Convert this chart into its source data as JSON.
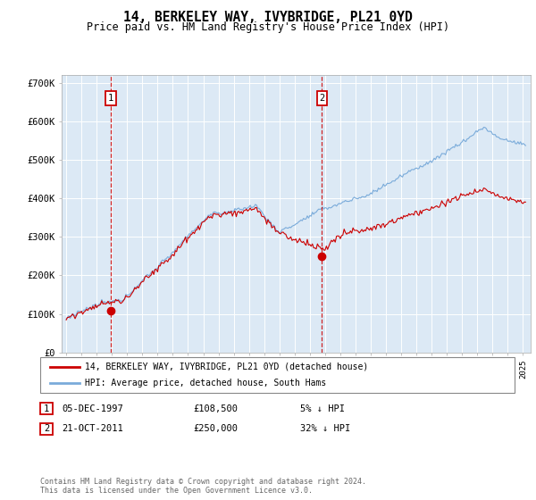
{
  "title": "14, BERKELEY WAY, IVYBRIDGE, PL21 0YD",
  "subtitle": "Price paid vs. HM Land Registry's House Price Index (HPI)",
  "ylim": [
    0,
    720000
  ],
  "yticks": [
    0,
    100000,
    200000,
    300000,
    400000,
    500000,
    600000,
    700000
  ],
  "ytick_labels": [
    "£0",
    "£100K",
    "£200K",
    "£300K",
    "£400K",
    "£500K",
    "£600K",
    "£700K"
  ],
  "sale1_date": 1997.92,
  "sale1_price": 108500,
  "sale1_label": "05-DEC-1997",
  "sale1_price_label": "£108,500",
  "sale1_pct": "5% ↓ HPI",
  "sale2_date": 2011.8,
  "sale2_price": 250000,
  "sale2_label": "21-OCT-2011",
  "sale2_price_label": "£250,000",
  "sale2_pct": "32% ↓ HPI",
  "legend1": "14, BERKELEY WAY, IVYBRIDGE, PL21 0YD (detached house)",
  "legend2": "HPI: Average price, detached house, South Hams",
  "footer": "Contains HM Land Registry data © Crown copyright and database right 2024.\nThis data is licensed under the Open Government Licence v3.0.",
  "line_color_red": "#cc0000",
  "line_color_blue": "#7aabda",
  "plot_bg": "#dce9f5",
  "marker_box_color": "#cc0000",
  "xlim_left": 1994.7,
  "xlim_right": 2025.5
}
